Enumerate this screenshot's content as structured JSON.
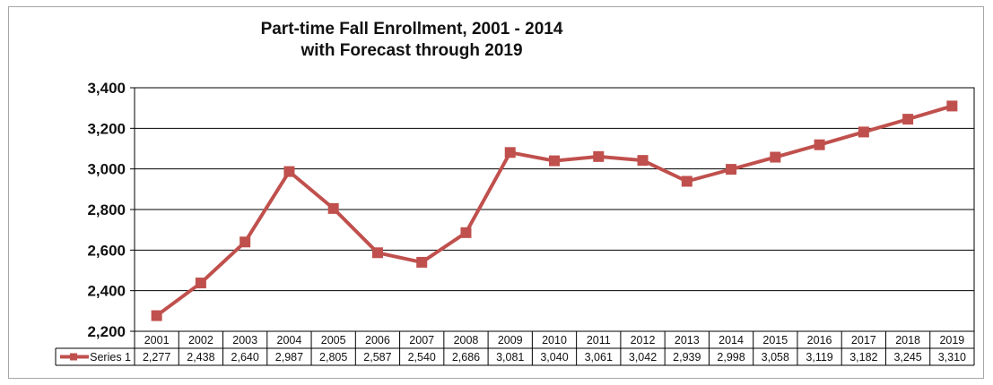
{
  "chart_data": {
    "type": "line",
    "title": "Part-time Fall Enrollment, 2001 - 2014",
    "subtitle": "with Forecast through 2019",
    "categories": [
      "2001",
      "2002",
      "2003",
      "2004",
      "2005",
      "2006",
      "2007",
      "2008",
      "2009",
      "2010",
      "2011",
      "2012",
      "2013",
      "2014",
      "2015",
      "2016",
      "2017",
      "2018",
      "2019"
    ],
    "series": [
      {
        "name": "Series 1",
        "values": [
          2277,
          2438,
          2640,
          2987,
          2805,
          2587,
          2540,
          2686,
          3081,
          3040,
          3061,
          3042,
          2939,
          2998,
          3058,
          3119,
          3182,
          3245,
          3310
        ],
        "labels": [
          "2,277",
          "2,438",
          "2,640",
          "2,987",
          "2,805",
          "2,587",
          "2,540",
          "2,686",
          "3,081",
          "3,040",
          "3,061",
          "3,042",
          "2,939",
          "2,998",
          "3,058",
          "3,119",
          "3,182",
          "3,245",
          "3,310"
        ],
        "color": "#c0504d"
      }
    ],
    "ylim": [
      2200,
      3400
    ],
    "yticks": [
      2200,
      2400,
      2600,
      2800,
      3000,
      3200,
      3400
    ],
    "ytick_labels": [
      "2,200",
      "2,400",
      "2,600",
      "2,800",
      "3,000",
      "3,200",
      "3,400"
    ],
    "grid": true,
    "data_table": true,
    "colors": {
      "line": "#c0504d",
      "marker": "#c0504d",
      "grid": "#000000"
    }
  }
}
